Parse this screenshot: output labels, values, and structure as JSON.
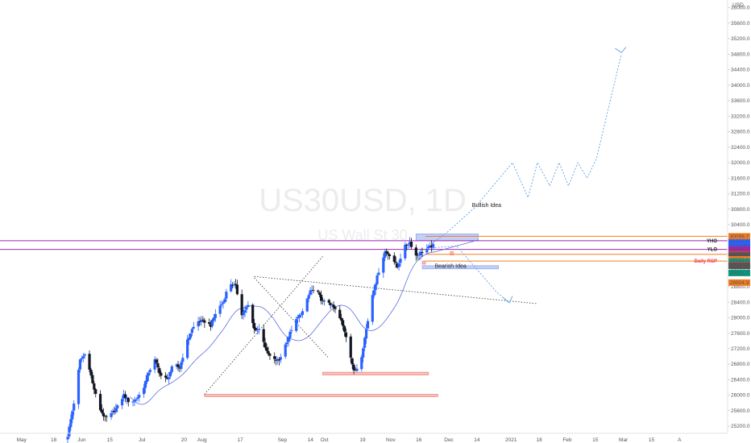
{
  "chart_data": {
    "type": "candlestick",
    "watermark": {
      "symbol": "US30USD, 1D",
      "name": "US Wall St 30"
    },
    "currency": "USD",
    "price_scale": {
      "ylim": [
        25200,
        36200
      ],
      "ticks": [
        "25200.0",
        "25600.0",
        "26000.0",
        "26400.0",
        "26800.0",
        "27200.0",
        "27600.0",
        "28000.0",
        "28400.0",
        "28800.0",
        "29200.0",
        "29600.0",
        "30000.0",
        "30400.0",
        "30800.0",
        "31200.0",
        "31600.0",
        "32000.0",
        "32400.0",
        "32800.0",
        "33200.0",
        "33600.0",
        "34000.0",
        "34400.0",
        "34800.0",
        "35200.0",
        "35600.0",
        "36000.0"
      ]
    },
    "time_axis": {
      "labels": [
        "May",
        "18",
        "Jun",
        "15",
        "Jul",
        "20",
        "Aug",
        "17",
        "Sep",
        "14",
        "Oct",
        "19",
        "Nov",
        "16",
        "Dec",
        "14",
        "2021",
        "18",
        "Feb",
        "15",
        "Mar",
        "15",
        "A"
      ]
    },
    "price_tags": [
      {
        "text": "30098.7",
        "price": 30098.7,
        "color": "#f57c1f"
      },
      {
        "text": "29938.8",
        "price": 29938.8,
        "color": "#2962ff"
      },
      {
        "text": "17:21:57",
        "price": 29855,
        "color": "#2962ff"
      },
      {
        "text": "29758.7",
        "price": 29758.7,
        "color": "#9c27b0"
      },
      {
        "text": "29633.0",
        "price": 29633.0,
        "color": "#f23645"
      },
      {
        "text": "29406.4",
        "price": 29406.4,
        "color": "#9c27b0"
      },
      {
        "text": "29603.5",
        "price": 29603.5,
        "color": "#555555"
      },
      {
        "text": "29502.5",
        "price": 29502.5,
        "color": "#f57c1f"
      },
      {
        "text": "29437.9",
        "price": 29437.9,
        "color": "#089981"
      },
      {
        "text": "29352.3",
        "price": 29352.3,
        "color": "#f23645"
      },
      {
        "text": "29334.2",
        "price": 29334.2,
        "color": "#555555"
      },
      {
        "text": "29151.7",
        "price": 29151.7,
        "color": "#089981"
      },
      {
        "text": "28904.3",
        "price": 28904.3,
        "color": "#f57c1f"
      }
    ],
    "level_labels": [
      {
        "text": "YHO",
        "price": 29985,
        "color": "#222222"
      },
      {
        "text": "YLO",
        "price": 29760,
        "color": "#222222"
      },
      {
        "text": "Daily RSP",
        "price": 29460,
        "color": "#f23645"
      }
    ],
    "annotations": [
      {
        "text": "Bullish Idea",
        "date": 260,
        "price": 30850
      },
      {
        "text": "Bearish Idea",
        "date": 236,
        "price": 29290
      }
    ],
    "colors": {
      "up": "#2962ff",
      "down": "#131722",
      "ma": "#5b6ee1",
      "purple": "#9c27b0",
      "orange": "#f57c1f",
      "zone_red": "#f28b82",
      "zone_blue": "#90a8f0",
      "projection": "#5aa0e6",
      "trendline": "#333333"
    }
  }
}
